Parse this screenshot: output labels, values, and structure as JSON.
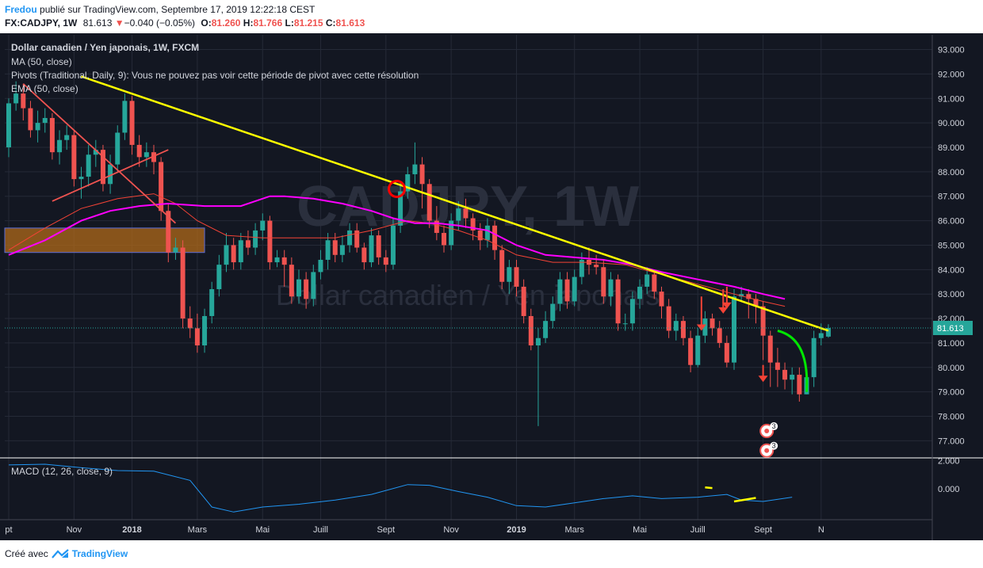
{
  "header": {
    "author": "Fredou",
    "published": "publié sur TradingView.com, Septembre 17, 2019 12:22:18 CEST",
    "symbol": "FX:CADJPY, 1W",
    "price": "81.613",
    "change": "−0.040 (−0.05%)",
    "o_label": "O:",
    "o": "81.260",
    "h_label": "H:",
    "h": "81.766",
    "l_label": "L:",
    "l": "81.215",
    "c_label": "C:",
    "c": "81.613"
  },
  "legend": {
    "title": "Dollar canadien / Yen japonais, 1W, FXCM",
    "ma": "MA (50, close)",
    "pivots": "Pivots (Traditional, Daily, 9): Vous ne pouvez pas voir cette période de pivot avec cette résolution",
    "ema": "EMA (50, close)",
    "macd": "MACD (12, 26, close, 9)"
  },
  "watermark": {
    "big": "CADJPY, 1W",
    "small": "Dollar canadien / Yen japonais"
  },
  "footer": {
    "prefix": "Créé avec",
    "brand": "TradingView"
  },
  "colors": {
    "up": "#26a69a",
    "down": "#ef5350",
    "ma": "#ff00ff",
    "ema": "#f44336",
    "trendline": "#ffff00",
    "macd": "#2196f3",
    "background": "#131722",
    "zone": "#b06a1a",
    "arc": "#00e600"
  },
  "chart_data": [
    {
      "type": "candlestick",
      "title": "Dollar canadien / Yen japonais, 1W, FXCM",
      "y_ticks": [
        "93.000",
        "92.000",
        "91.000",
        "90.000",
        "89.000",
        "88.000",
        "87.000",
        "86.000",
        "85.000",
        "84.000",
        "83.000",
        "82.000",
        "81.000",
        "80.000",
        "79.000",
        "78.000",
        "77.000"
      ],
      "ylim": [
        76.3,
        93.6
      ],
      "x_ticks": [
        {
          "label": "pt",
          "week": 0
        },
        {
          "label": "Nov",
          "week": 9
        },
        {
          "label": "2018",
          "week": 17
        },
        {
          "label": "Mars",
          "week": 26
        },
        {
          "label": "Mai",
          "week": 35
        },
        {
          "label": "Juill",
          "week": 43
        },
        {
          "label": "Sept",
          "week": 52
        },
        {
          "label": "Nov",
          "week": 61
        },
        {
          "label": "2019",
          "week": 70
        },
        {
          "label": "Mars",
          "week": 78
        },
        {
          "label": "Mai",
          "week": 87
        },
        {
          "label": "Juill",
          "week": 95
        },
        {
          "label": "Sept",
          "week": 104
        },
        {
          "label": "N",
          "week": 112
        }
      ],
      "last_price": "81.613",
      "candles": [
        [
          89.0,
          90.8,
          91.0,
          88.6
        ],
        [
          90.8,
          91.2,
          91.7,
          90.5
        ],
        [
          91.2,
          90.6,
          91.6,
          90.1
        ],
        [
          90.6,
          89.7,
          90.9,
          89.4
        ],
        [
          89.7,
          90.0,
          90.5,
          89.2
        ],
        [
          90.0,
          90.2,
          90.6,
          89.6
        ],
        [
          90.2,
          88.8,
          90.4,
          88.5
        ],
        [
          88.8,
          89.3,
          89.7,
          88.3
        ],
        [
          89.3,
          89.5,
          89.9,
          88.9
        ],
        [
          89.5,
          87.7,
          89.7,
          87.4
        ],
        [
          87.7,
          87.8,
          88.2,
          86.9
        ],
        [
          87.8,
          88.7,
          89.1,
          87.4
        ],
        [
          88.7,
          88.9,
          89.3,
          88.2
        ],
        [
          88.9,
          87.5,
          89.1,
          87.2
        ],
        [
          87.5,
          88.3,
          88.7,
          87.1
        ],
        [
          88.3,
          89.6,
          89.9,
          88.0
        ],
        [
          89.6,
          90.9,
          91.2,
          89.3
        ],
        [
          90.9,
          89.1,
          91.1,
          88.7
        ],
        [
          89.1,
          88.6,
          89.5,
          88.2
        ],
        [
          88.6,
          88.8,
          89.2,
          88.2
        ],
        [
          88.8,
          88.4,
          89.1,
          87.9
        ],
        [
          88.4,
          86.4,
          88.6,
          86.0
        ],
        [
          86.4,
          84.7,
          86.7,
          84.3
        ],
        [
          84.7,
          84.9,
          85.3,
          84.4
        ],
        [
          84.9,
          82.0,
          85.2,
          81.6
        ],
        [
          82.0,
          81.6,
          82.5,
          81.2
        ],
        [
          81.6,
          80.9,
          82.2,
          80.6
        ],
        [
          80.9,
          82.1,
          82.4,
          80.6
        ],
        [
          82.1,
          83.2,
          83.5,
          81.8
        ],
        [
          83.2,
          84.2,
          84.6,
          82.9
        ],
        [
          84.2,
          85.0,
          85.5,
          83.9
        ],
        [
          85.0,
          84.3,
          85.3,
          84.0
        ],
        [
          84.3,
          85.2,
          85.5,
          84.0
        ],
        [
          85.2,
          84.9,
          85.6,
          84.6
        ],
        [
          84.9,
          85.6,
          85.9,
          84.6
        ],
        [
          85.6,
          86.0,
          86.3,
          85.2
        ],
        [
          86.0,
          84.3,
          86.2,
          84.0
        ],
        [
          84.3,
          84.5,
          84.8,
          84.1
        ],
        [
          84.5,
          84.2,
          84.8,
          83.3
        ],
        [
          84.2,
          82.9,
          84.5,
          82.6
        ],
        [
          82.9,
          83.6,
          84.0,
          82.6
        ],
        [
          83.6,
          82.8,
          83.9,
          82.4
        ],
        [
          82.8,
          83.9,
          84.2,
          82.5
        ],
        [
          83.9,
          84.4,
          84.8,
          83.6
        ],
        [
          84.4,
          85.2,
          85.5,
          84.0
        ],
        [
          85.2,
          84.6,
          85.5,
          84.3
        ],
        [
          84.6,
          85.0,
          85.4,
          84.3
        ],
        [
          85.0,
          85.6,
          85.9,
          84.7
        ],
        [
          85.6,
          84.9,
          85.9,
          84.7
        ],
        [
          84.9,
          84.3,
          85.1,
          84.0
        ],
        [
          84.3,
          85.4,
          85.7,
          84.1
        ],
        [
          85.4,
          84.5,
          85.6,
          84.2
        ],
        [
          84.5,
          84.2,
          84.8,
          83.9
        ],
        [
          84.2,
          85.8,
          86.1,
          84.0
        ],
        [
          85.8,
          87.2,
          87.6,
          85.5
        ],
        [
          87.2,
          87.9,
          88.2,
          86.9
        ],
        [
          87.9,
          88.3,
          89.2,
          87.5
        ],
        [
          88.3,
          87.5,
          88.6,
          86.5
        ],
        [
          87.5,
          86.0,
          87.7,
          85.7
        ],
        [
          86.0,
          85.5,
          86.6,
          85.2
        ],
        [
          85.5,
          85.0,
          85.8,
          84.7
        ],
        [
          85.0,
          86.0,
          86.3,
          84.8
        ],
        [
          86.0,
          86.5,
          86.8,
          85.6
        ],
        [
          86.5,
          86.1,
          86.9,
          85.7
        ],
        [
          86.1,
          85.6,
          86.3,
          85.2
        ],
        [
          85.6,
          85.2,
          85.9,
          84.8
        ],
        [
          85.2,
          85.8,
          86.1,
          84.9
        ],
        [
          85.8,
          84.8,
          86.0,
          84.4
        ],
        [
          84.8,
          83.5,
          85.0,
          83.2
        ],
        [
          83.5,
          84.1,
          84.4,
          83.0
        ],
        [
          84.1,
          83.3,
          84.4,
          82.9
        ],
        [
          83.3,
          82.1,
          83.6,
          81.8
        ],
        [
          82.1,
          80.9,
          82.4,
          80.7
        ],
        [
          80.9,
          81.2,
          81.6,
          77.6
        ],
        [
          81.2,
          81.9,
          82.3,
          81.0
        ],
        [
          81.9,
          82.6,
          82.9,
          81.6
        ],
        [
          82.6,
          83.6,
          83.9,
          82.3
        ],
        [
          83.6,
          82.7,
          83.9,
          82.4
        ],
        [
          82.7,
          83.7,
          84.0,
          82.5
        ],
        [
          83.7,
          84.4,
          84.7,
          83.4
        ],
        [
          84.4,
          84.2,
          84.9,
          83.8
        ],
        [
          84.2,
          84.1,
          84.6,
          83.8
        ],
        [
          84.1,
          82.9,
          84.4,
          82.6
        ],
        [
          82.9,
          83.6,
          83.9,
          82.5
        ],
        [
          83.6,
          81.8,
          83.8,
          81.5
        ],
        [
          81.8,
          81.8,
          82.2,
          81.5
        ],
        [
          81.8,
          82.8,
          83.1,
          81.5
        ],
        [
          82.8,
          83.3,
          83.6,
          82.4
        ],
        [
          83.3,
          83.8,
          84.1,
          83.0
        ],
        [
          83.8,
          83.1,
          84.0,
          82.8
        ],
        [
          83.1,
          82.5,
          83.3,
          82.0
        ],
        [
          82.5,
          81.5,
          82.8,
          81.2
        ],
        [
          81.5,
          81.9,
          82.2,
          81.1
        ],
        [
          81.9,
          81.2,
          82.1,
          80.9
        ],
        [
          81.2,
          80.1,
          81.5,
          79.8
        ],
        [
          80.1,
          81.3,
          81.6,
          80.0
        ],
        [
          81.3,
          82.0,
          82.3,
          81.0
        ],
        [
          82.0,
          81.6,
          82.2,
          81.3
        ],
        [
          81.6,
          81.0,
          81.9,
          80.8
        ],
        [
          81.0,
          80.2,
          81.3,
          80.0
        ],
        [
          80.2,
          82.9,
          83.2,
          79.9
        ],
        [
          82.9,
          83.0,
          83.3,
          82.7
        ],
        [
          83.0,
          82.8,
          83.2,
          82.0
        ],
        [
          82.8,
          82.5,
          83.0,
          81.8
        ],
        [
          82.5,
          81.3,
          82.7,
          80.3
        ],
        [
          81.3,
          80.2,
          81.5,
          79.2
        ],
        [
          80.2,
          79.9,
          80.8,
          79.2
        ],
        [
          79.9,
          79.5,
          80.2,
          79.1
        ],
        [
          79.5,
          79.7,
          80.0,
          78.9
        ],
        [
          79.7,
          78.9,
          80.0,
          78.6
        ],
        [
          78.9,
          79.6,
          80.0,
          78.9
        ],
        [
          79.6,
          81.2,
          81.5,
          79.2
        ],
        [
          81.2,
          81.4,
          81.8,
          80.9
        ],
        [
          81.26,
          81.613,
          81.766,
          81.215
        ]
      ],
      "ma50": [
        [
          0,
          84.6
        ],
        [
          5,
          85.2
        ],
        [
          10,
          86.0
        ],
        [
          14,
          86.4
        ],
        [
          18,
          86.6
        ],
        [
          22,
          86.7
        ],
        [
          27,
          86.6
        ],
        [
          32,
          86.6
        ],
        [
          36,
          87.0
        ],
        [
          38,
          87.0
        ],
        [
          42,
          86.9
        ],
        [
          46,
          86.7
        ],
        [
          50,
          86.4
        ],
        [
          53,
          86.1
        ],
        [
          56,
          85.9
        ],
        [
          59,
          85.9
        ],
        [
          62,
          85.8
        ],
        [
          66,
          85.6
        ],
        [
          70,
          85.0
        ],
        [
          74,
          84.6
        ],
        [
          78,
          84.5
        ],
        [
          82,
          84.4
        ],
        [
          86,
          84.2
        ],
        [
          90,
          83.9
        ],
        [
          95,
          83.6
        ],
        [
          100,
          83.3
        ],
        [
          104,
          83.0
        ],
        [
          107,
          82.8
        ]
      ],
      "ema50": [
        [
          0,
          84.8
        ],
        [
          5,
          85.7
        ],
        [
          10,
          86.5
        ],
        [
          15,
          86.9
        ],
        [
          20,
          87.1
        ],
        [
          23,
          86.7
        ],
        [
          26,
          86.0
        ],
        [
          30,
          85.4
        ],
        [
          35,
          85.3
        ],
        [
          40,
          85.3
        ],
        [
          45,
          85.3
        ],
        [
          50,
          85.6
        ],
        [
          55,
          86.0
        ],
        [
          58,
          85.9
        ],
        [
          62,
          85.6
        ],
        [
          66,
          85.2
        ],
        [
          70,
          84.6
        ],
        [
          75,
          84.3
        ],
        [
          80,
          84.3
        ],
        [
          85,
          84.2
        ],
        [
          90,
          83.8
        ],
        [
          95,
          83.4
        ],
        [
          100,
          83.0
        ],
        [
          104,
          82.7
        ],
        [
          107,
          82.5
        ]
      ],
      "trendlines": [
        {
          "from": [
            10,
            91.9
          ],
          "to": [
            113,
            81.5
          ],
          "color": "#ffff00"
        },
        {
          "from": [
            2,
            91.6
          ],
          "to": [
            23,
            85.9
          ],
          "color": "#ef5350"
        },
        {
          "from": [
            6,
            86.8
          ],
          "to": [
            22,
            88.9
          ],
          "color": "#ef5350"
        }
      ],
      "zone": {
        "x0": 0,
        "x1": 27,
        "y0": 84.7,
        "y1": 85.7
      },
      "annotations": [
        {
          "type": "circle",
          "week": 53.5,
          "y": 87.3
        },
        {
          "type": "arrow-down",
          "week": 95.5,
          "from": 82.9,
          "to": 81.5
        },
        {
          "type": "arrow-down",
          "week": 98.5,
          "from": 83.2,
          "to": 82.2
        },
        {
          "type": "arrow-down",
          "week": 99,
          "from": 83.3,
          "to": 82.4
        },
        {
          "type": "arrow-down",
          "week": 104,
          "from": 80.1,
          "to": 79.4
        },
        {
          "type": "arc",
          "from": [
            106,
            81.5
          ],
          "to": [
            110,
            79.0
          ],
          "color": "#00e600"
        },
        {
          "type": "badge",
          "week": 104.5,
          "y": 77.4,
          "count": "3"
        },
        {
          "type": "badge",
          "week": 104.5,
          "y": 76.6,
          "count": "3"
        }
      ]
    },
    {
      "type": "line",
      "title": "MACD (12, 26, close, 9)",
      "y_ticks": [
        "2.000",
        "0.000"
      ],
      "series": [
        {
          "values": [
            [
              0,
              1.7
            ],
            [
              5,
              1.75
            ],
            [
              10,
              1.5
            ],
            [
              15,
              1.3
            ],
            [
              20,
              1.25
            ],
            [
              25,
              0.6
            ],
            [
              28,
              -1.3
            ],
            [
              31,
              -1.65
            ],
            [
              35,
              -1.3
            ],
            [
              40,
              -1.1
            ],
            [
              45,
              -0.8
            ],
            [
              50,
              -0.4
            ],
            [
              55,
              0.3
            ],
            [
              58,
              0.25
            ],
            [
              62,
              -0.2
            ],
            [
              66,
              -0.6
            ],
            [
              70,
              -1.2
            ],
            [
              74,
              -1.3
            ],
            [
              78,
              -1.0
            ],
            [
              82,
              -0.7
            ],
            [
              86,
              -0.5
            ],
            [
              90,
              -0.7
            ],
            [
              95,
              -0.6
            ],
            [
              99,
              -0.4
            ],
            [
              101,
              -0.8
            ],
            [
              104,
              -0.9
            ],
            [
              108,
              -0.6
            ]
          ]
        }
      ],
      "annotations": [
        {
          "type": "segment",
          "from": [
            96,
            0.1
          ],
          "to": [
            97,
            0.05
          ],
          "color": "#ffff00"
        },
        {
          "type": "segment",
          "from": [
            100,
            -0.9
          ],
          "to": [
            103,
            -0.65
          ],
          "color": "#ffff00"
        }
      ],
      "ylim": [
        -2.2,
        2.2
      ]
    }
  ]
}
